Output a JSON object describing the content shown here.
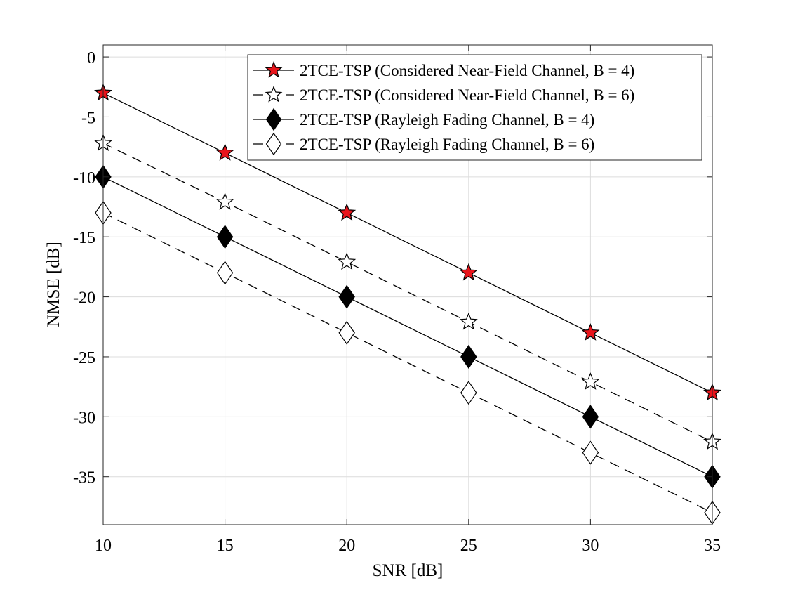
{
  "chart_data": {
    "type": "line",
    "title": "",
    "xlabel": "SNR [dB]",
    "ylabel": "NMSE [dB]",
    "xlim": [
      10,
      35
    ],
    "ylim": [
      -39,
      1
    ],
    "xticks": [
      10,
      15,
      20,
      25,
      30,
      35
    ],
    "yticks": [
      0,
      -5,
      -10,
      -15,
      -20,
      -25,
      -30,
      -35
    ],
    "grid": true,
    "legend_position": "top-right",
    "x": [
      10,
      15,
      20,
      25,
      30,
      35
    ],
    "series": [
      {
        "name": "2TCE-TSP (Considered Near-Field Channel, B = 4)",
        "values": [
          -3,
          -8,
          -13,
          -18,
          -23,
          -28
        ],
        "line_style": "solid",
        "marker": "star",
        "marker_fill": "#e8141b"
      },
      {
        "name": "2TCE-TSP (Considered Near-Field Channel, B = 6)",
        "values": [
          -7.2,
          -12.1,
          -17.1,
          -22.1,
          -27.1,
          -32.1
        ],
        "line_style": "dashed",
        "marker": "star",
        "marker_fill": "#ffffff"
      },
      {
        "name": "2TCE-TSP (Rayleigh Fading Channel, B = 4)",
        "values": [
          -10,
          -15,
          -20,
          -25,
          -30,
          -35
        ],
        "line_style": "solid",
        "marker": "diamond",
        "marker_fill": "#000000"
      },
      {
        "name": "2TCE-TSP (Rayleigh Fading Channel, B = 6)",
        "values": [
          -13,
          -18,
          -23,
          -28,
          -33,
          -38
        ],
        "line_style": "dashed",
        "marker": "diamond",
        "marker_fill": "#ffffff"
      }
    ]
  }
}
